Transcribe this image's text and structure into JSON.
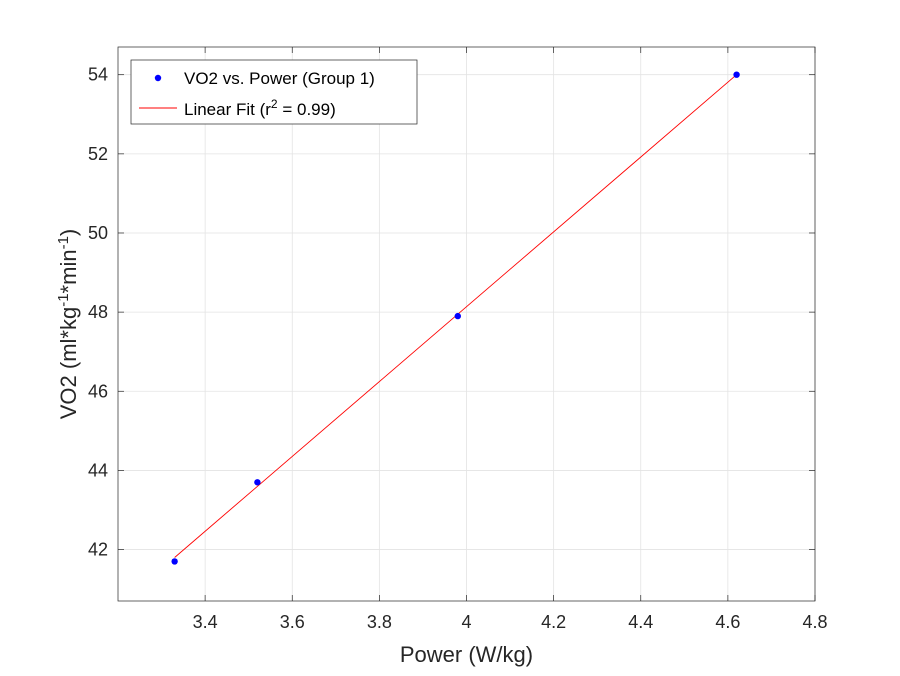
{
  "chart_data": {
    "type": "scatter",
    "title": "",
    "xlabel": "Power (W/kg)",
    "ylabel": "VO2 (ml*kg",
    "ylabel_sup1": "-1",
    "ylabel_mid": "*min",
    "ylabel_sup2": "-1",
    "ylabel_end": ")",
    "xlim": [
      3.2,
      4.8
    ],
    "ylim": [
      40.7,
      54.7
    ],
    "xticks": [
      3.4,
      3.6,
      3.8,
      4.0,
      4.2,
      4.4,
      4.6,
      4.8
    ],
    "xtick_labels": [
      "3.4",
      "3.6",
      "3.8",
      "4",
      "4.2",
      "4.4",
      "4.6",
      "4.8"
    ],
    "yticks": [
      42,
      44,
      46,
      48,
      50,
      52,
      54
    ],
    "ytick_labels": [
      "42",
      "44",
      "46",
      "48",
      "50",
      "52",
      "54"
    ],
    "grid": true,
    "legend_position": "top-left",
    "series": [
      {
        "name": "VO2 vs. Power (Group 1)",
        "kind": "points",
        "color": "#0000ff",
        "x": [
          3.33,
          3.52,
          3.98,
          4.62
        ],
        "y": [
          41.7,
          43.7,
          47.9,
          54.0
        ]
      },
      {
        "name_prefix": "Linear Fit (r",
        "name_sup": "2",
        "name_suffix": " = 0.99)",
        "kind": "line",
        "color": "#ff0000",
        "x": [
          3.33,
          4.62
        ],
        "y": [
          41.8,
          54.0
        ]
      }
    ]
  }
}
